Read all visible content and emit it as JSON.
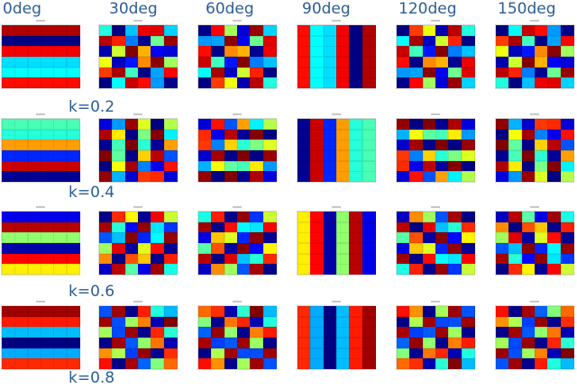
{
  "figure": {
    "column_labels": [
      "0deg",
      "30deg",
      "60deg",
      "90deg",
      "120deg",
      "150deg"
    ],
    "row_labels": [
      "k=0.2",
      "k=0.4",
      "k=0.6",
      "k=0.8"
    ],
    "grid": {
      "rows": 4,
      "cols": 6,
      "cells_per_tile": {
        "rows": 6,
        "cols": 6
      }
    },
    "orientations_deg": [
      0,
      30,
      60,
      90,
      120,
      150
    ],
    "frequencies_k": [
      0.2,
      0.4,
      0.6,
      0.8
    ],
    "colormap": "jet"
  }
}
